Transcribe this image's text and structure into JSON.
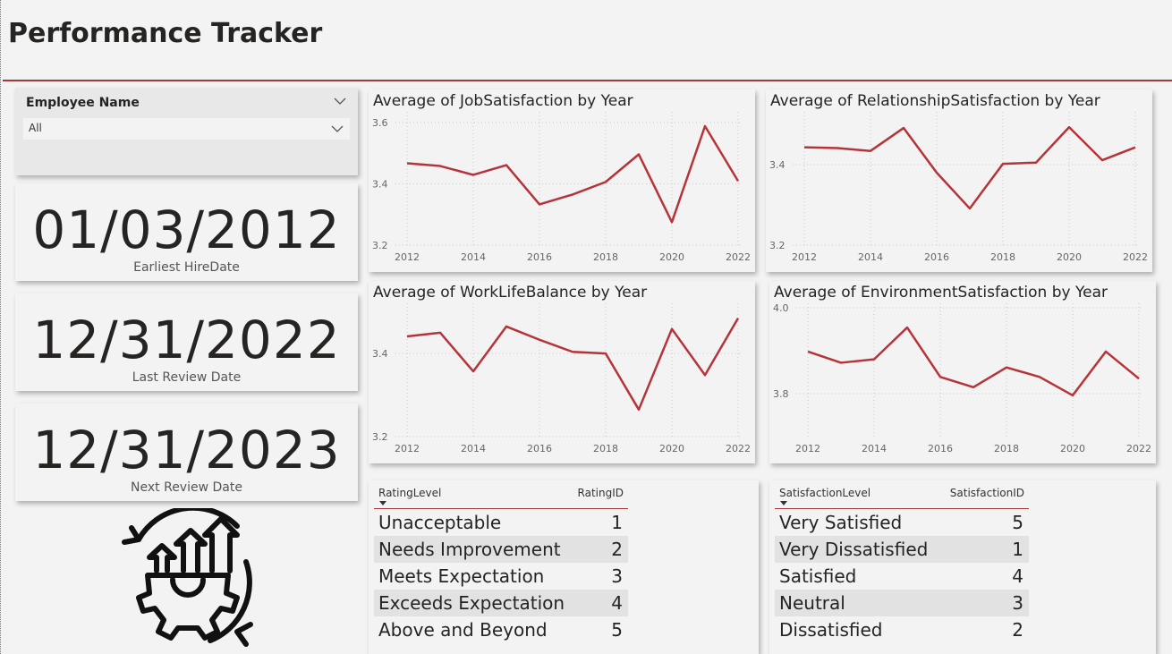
{
  "header": {
    "title": "Performance Tracker"
  },
  "slicer": {
    "title": "Employee Name",
    "selection": "All"
  },
  "cards": [
    {
      "value": "01/03/2012",
      "label": "Earliest HireDate"
    },
    {
      "value": "12/31/2022",
      "label": "Last Review Date"
    },
    {
      "value": "12/31/2023",
      "label": "Next Review Date"
    }
  ],
  "chart_data": [
    {
      "type": "line",
      "title": "Average of JobSatisfaction by Year",
      "color": "#b5343a",
      "x": [
        2012,
        2013,
        2014,
        2015,
        2016,
        2017,
        2018,
        2019,
        2020,
        2021,
        2022
      ],
      "values": [
        3.467,
        3.458,
        3.429,
        3.461,
        3.333,
        3.365,
        3.406,
        3.496,
        3.275,
        3.588,
        3.409
      ],
      "xlim": [
        2012,
        2022
      ],
      "xticks": [
        2012,
        2014,
        2016,
        2018,
        2020,
        2022
      ],
      "ylim": [
        3.2,
        3.62
      ],
      "yticks": [
        3.2,
        3.4,
        3.6
      ],
      "grid": true
    },
    {
      "type": "line",
      "title": "Average of RelationshipSatisfaction by Year",
      "color": "#b5343a",
      "x": [
        2012,
        2013,
        2014,
        2015,
        2016,
        2017,
        2018,
        2019,
        2020,
        2021,
        2022
      ],
      "values": [
        3.443,
        3.441,
        3.434,
        3.491,
        3.38,
        3.291,
        3.402,
        3.405,
        3.493,
        3.411,
        3.443
      ],
      "xlim": [
        2012,
        2022
      ],
      "xticks": [
        2012,
        2014,
        2016,
        2018,
        2020,
        2022
      ],
      "ylim": [
        3.2,
        3.52
      ],
      "yticks": [
        3.2,
        3.4
      ],
      "grid": true
    },
    {
      "type": "line",
      "title": "Average of WorkLifeBalance by Year",
      "color": "#b5343a",
      "x": [
        2012,
        2013,
        2014,
        2015,
        2016,
        2017,
        2018,
        2019,
        2020,
        2021,
        2022
      ],
      "values": [
        3.441,
        3.45,
        3.357,
        3.465,
        3.433,
        3.404,
        3.4,
        3.265,
        3.459,
        3.348,
        3.485
      ],
      "xlim": [
        2012,
        2022
      ],
      "xticks": [
        2012,
        2014,
        2016,
        2018,
        2020,
        2022
      ],
      "ylim": [
        3.2,
        3.51
      ],
      "yticks": [
        3.2,
        3.4
      ],
      "grid": true
    },
    {
      "type": "line",
      "title": "Average of EnvironmentSatisfaction by Year",
      "color": "#b5343a",
      "x": [
        2012,
        2013,
        2014,
        2015,
        2016,
        2017,
        2018,
        2019,
        2020,
        2021,
        2022
      ],
      "values": [
        3.898,
        3.872,
        3.88,
        3.954,
        3.839,
        3.815,
        3.861,
        3.839,
        3.796,
        3.898,
        3.835
      ],
      "xlim": [
        2012,
        2022
      ],
      "xticks": [
        2012,
        2014,
        2016,
        2018,
        2020,
        2022
      ],
      "ylim": [
        3.7,
        4.0
      ],
      "yticks": [
        3.8,
        {
          "value": 4,
          "label": "4.0"
        }
      ],
      "grid": true
    }
  ],
  "tables": [
    {
      "columns": [
        "RatingLevel",
        "RatingID"
      ],
      "rows": [
        [
          "Unacceptable",
          1
        ],
        [
          "Needs Improvement",
          2
        ],
        [
          "Meets Expectation",
          3
        ],
        [
          "Exceeds Expectation",
          4
        ],
        [
          "Above and Beyond",
          5
        ]
      ]
    },
    {
      "columns": [
        "SatisfactionLevel",
        "SatisfactionID"
      ],
      "rows": [
        [
          "Very Satisfied",
          5
        ],
        [
          "Very Dissatisfied",
          1
        ],
        [
          "Satisfied",
          4
        ],
        [
          "Neutral",
          3
        ],
        [
          "Dissatisfied",
          2
        ]
      ]
    }
  ]
}
